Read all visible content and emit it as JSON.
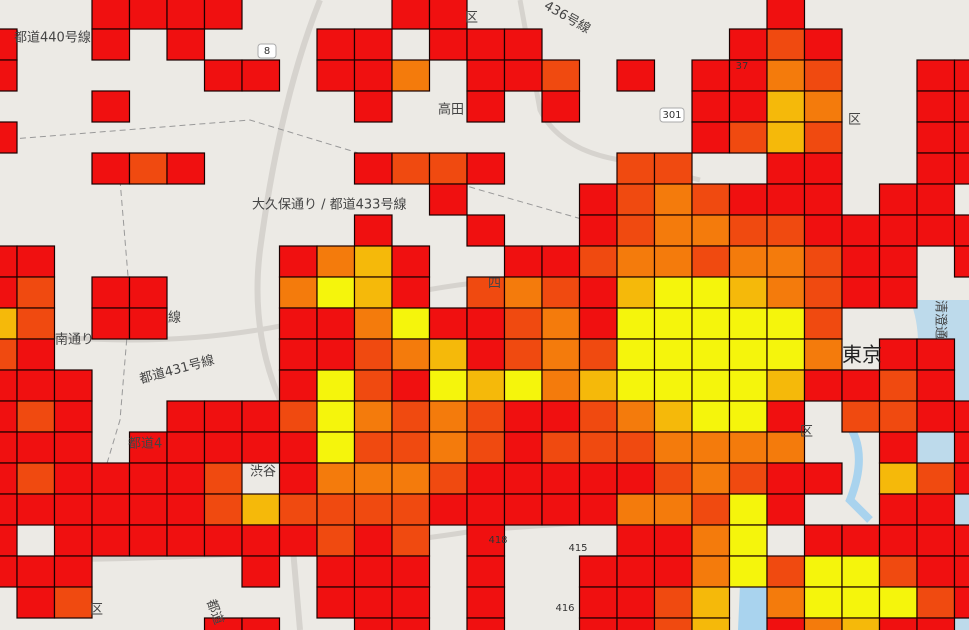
{
  "map": {
    "labels": [
      "都道440号線",
      "8",
      "高田",
      "301",
      "区",
      "37",
      "大久保通り / 都道433号線",
      "四",
      "東京",
      "南通り",
      "都道431号線",
      "都道4",
      "渋谷",
      "418",
      "415",
      "416",
      "都道",
      "区",
      "清澄通",
      "436号線",
      "区",
      "線",
      "区"
    ]
  }
}
